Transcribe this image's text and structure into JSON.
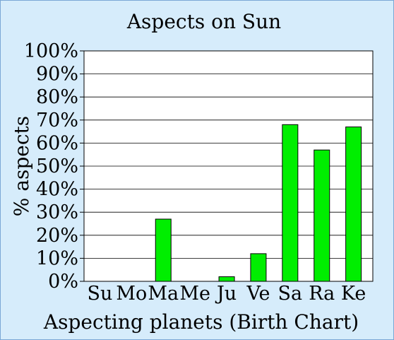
{
  "chart_data": {
    "type": "bar",
    "title": "Aspects on Sun",
    "xlabel": "Aspecting planets (Birth Chart)",
    "ylabel": "% aspects",
    "categories": [
      "Su",
      "Mo",
      "Ma",
      "Me",
      "Ju",
      "Ve",
      "Sa",
      "Ra",
      "Ke"
    ],
    "values": [
      0,
      0,
      27,
      0,
      2,
      12,
      68,
      57,
      67
    ],
    "ylim": [
      0,
      100
    ],
    "yticks": [
      "0%",
      "10%",
      "20%",
      "30%",
      "40%",
      "50%",
      "60%",
      "70%",
      "80%",
      "90%",
      "100%"
    ],
    "grid": true,
    "colors": {
      "bar": "#00ee00",
      "bar_edge": "#000000",
      "background": "#d6ecfb",
      "plot_bg": "#ffffff"
    }
  }
}
